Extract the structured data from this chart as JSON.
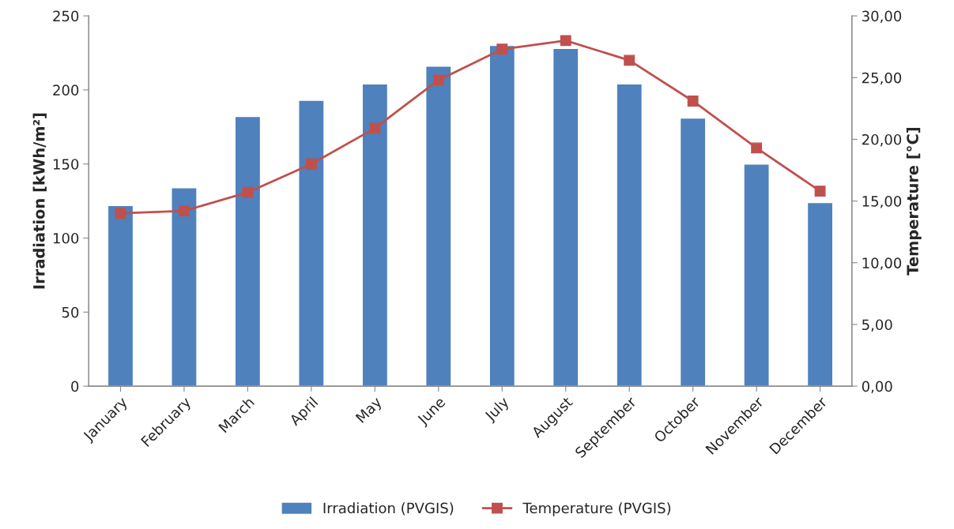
{
  "chart_data": {
    "type": "bar",
    "categories": [
      "January",
      "February",
      "March",
      "April",
      "May",
      "June",
      "July",
      "August",
      "September",
      "October",
      "November",
      "December"
    ],
    "series": [
      {
        "name": "Irradiation (PVGIS)",
        "color": "#4f81bd",
        "values": [
          122,
          134,
          182,
          193,
          204,
          216,
          230,
          228,
          204,
          181,
          150,
          124
        ]
      },
      {
        "name": "Temperature (PVGIS)",
        "type": "line",
        "axis": "y2",
        "color": "#c0504d",
        "marker": "square",
        "values": [
          14.0,
          14.2,
          15.7,
          18.0,
          20.9,
          24.8,
          27.3,
          28.0,
          26.4,
          23.1,
          19.3,
          15.8
        ]
      }
    ],
    "ylabel": "Irradiation [kWh/m²]",
    "y2label": "Temperature [°C]",
    "ylim": [
      0,
      250
    ],
    "yticks": [
      0,
      50,
      100,
      150,
      200,
      250
    ],
    "y2lim": [
      0,
      30
    ],
    "y2ticks": [
      {
        "value": 0,
        "label": "0,00"
      },
      {
        "value": 5,
        "label": "5,00"
      },
      {
        "value": 10,
        "label": "10,00"
      },
      {
        "value": 15,
        "label": "15,00"
      },
      {
        "value": 20,
        "label": "20,00"
      },
      {
        "value": 25,
        "label": "25,00"
      },
      {
        "value": 30,
        "label": "30,00"
      }
    ],
    "grid": false,
    "legend": "bottom"
  }
}
